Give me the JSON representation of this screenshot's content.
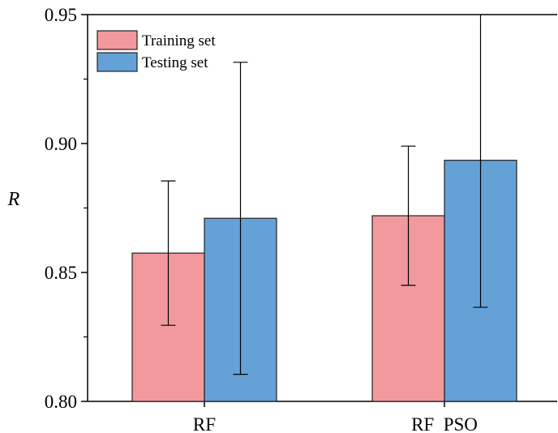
{
  "chart_data": {
    "type": "bar",
    "title": "",
    "xlabel": "",
    "ylabel": "R",
    "ylim": [
      0.8,
      0.95
    ],
    "yticks": [
      "0.80",
      "0.85",
      "0.90",
      "0.95"
    ],
    "categories": [
      "RF",
      "RF  PSO"
    ],
    "series": [
      {
        "name": "Training set",
        "color": "#f2999e",
        "values": [
          0.8575,
          0.872
        ],
        "error": [
          0.028,
          0.027
        ]
      },
      {
        "name": "Testing set",
        "color": "#64a1d6",
        "values": [
          0.871,
          0.8935
        ],
        "error": [
          0.0605,
          0.057
        ]
      }
    ],
    "legend": "top-left",
    "grid": false
  }
}
